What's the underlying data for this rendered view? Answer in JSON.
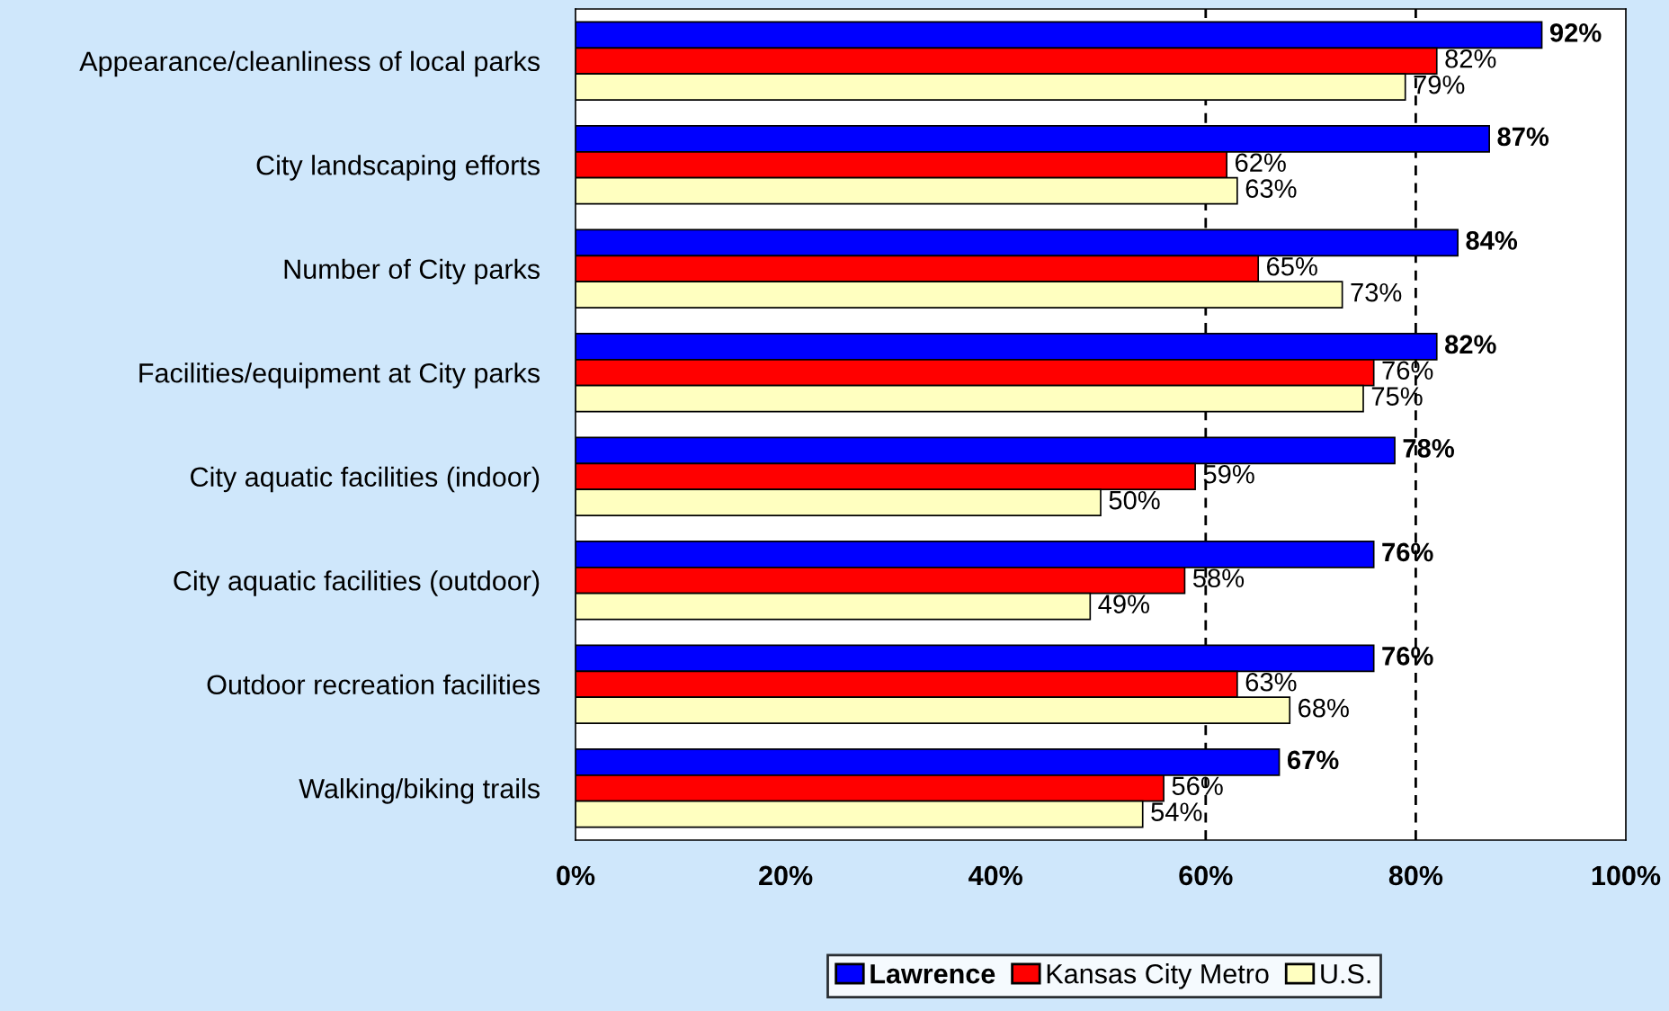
{
  "chart_data": {
    "type": "bar",
    "orientation": "horizontal",
    "categories": [
      "Appearance/cleanliness of local parks",
      "City landscaping efforts",
      "Number of City parks",
      "Facilities/equipment at City parks",
      "City aquatic facilities (indoor)",
      "City aquatic facilities (outdoor)",
      "Outdoor recreation facilities",
      "Walking/biking trails"
    ],
    "series": [
      {
        "name": "Lawrence",
        "color": "#0000ff",
        "values": [
          92,
          87,
          84,
          82,
          78,
          76,
          76,
          67
        ],
        "value_labels": [
          "92%",
          "87%",
          "84%",
          "82%",
          "78%",
          "76%",
          "76%",
          "67%"
        ]
      },
      {
        "name": "Kansas City Metro",
        "color": "#ff0000",
        "values": [
          82,
          62,
          65,
          76,
          59,
          58,
          63,
          56
        ],
        "value_labels": [
          "82%",
          "62%",
          "65%",
          "76%",
          "59%",
          "58%",
          "63%",
          "56%"
        ]
      },
      {
        "name": "U.S.",
        "color": "#ffffc0",
        "values": [
          79,
          63,
          73,
          75,
          50,
          49,
          68,
          54
        ],
        "value_labels": [
          "79%",
          "63%",
          "73%",
          "75%",
          "50%",
          "49%",
          "68%",
          "54%"
        ]
      }
    ],
    "xlim": [
      0,
      100
    ],
    "xticks": [
      {
        "value": 0,
        "label": "0%"
      },
      {
        "value": 20,
        "label": "20%"
      },
      {
        "value": 40,
        "label": "40%"
      },
      {
        "value": 60,
        "label": "60%"
      },
      {
        "value": 80,
        "label": "80%"
      },
      {
        "value": 100,
        "label": "100%"
      }
    ],
    "ref_lines": [
      {
        "axis": "x",
        "value": 60,
        "line_style": "dashed",
        "color": "#000000"
      },
      {
        "axis": "x",
        "value": 80,
        "line_style": "dashed",
        "color": "#000000"
      }
    ],
    "legend": "bottom",
    "grid": false
  }
}
